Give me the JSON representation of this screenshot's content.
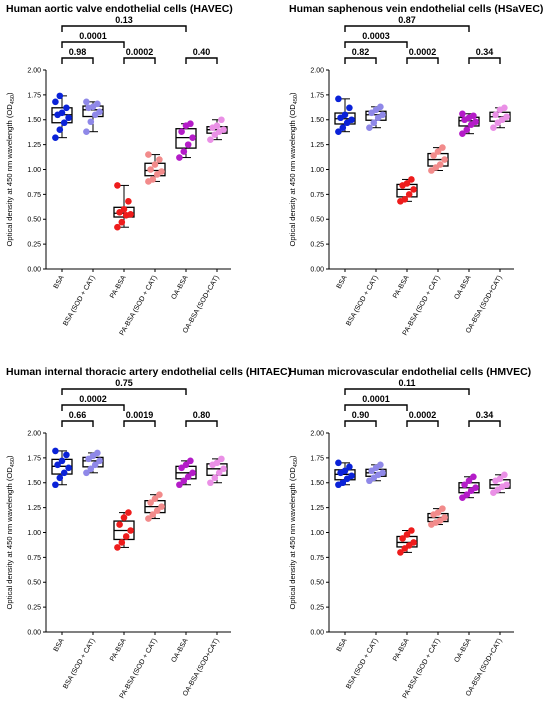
{
  "chart_data": [
    {
      "type": "box",
      "title": "Human aortic valve endothelial cells (HAVEC)",
      "ylabel": "Optical density at 450 nm wavelength (OD",
      "ylabel_sub": "450",
      "ylabel_end": ")",
      "ylim": [
        0,
        2
      ],
      "yticks": [
        "0.00",
        "0.25",
        "0.50",
        "0.75",
        "1.00",
        "1.25",
        "1.50",
        "1.75",
        "2.00"
      ],
      "categories": [
        "BSA",
        "BSA (SOD + CAT)",
        "PA-BSA",
        "PA-BSA (SOD + CAT)",
        "OA-BSA",
        "OA-BSA (SOD+CAT)"
      ],
      "colors": [
        "#0a22d8",
        "#8f88e8",
        "#ee1c1c",
        "#f28b8b",
        "#b41cc8",
        "#ea90e6"
      ],
      "series": [
        {
          "points": [
            1.74,
            1.68,
            1.62,
            1.57,
            1.55,
            1.52,
            1.47,
            1.4,
            1.32
          ]
        },
        {
          "points": [
            1.68,
            1.66,
            1.63,
            1.62,
            1.58,
            1.55,
            1.48,
            1.38
          ]
        },
        {
          "points": [
            0.84,
            0.68,
            0.6,
            0.57,
            0.55,
            0.54,
            0.47,
            0.42
          ]
        },
        {
          "points": [
            1.15,
            1.1,
            1.05,
            1.0,
            0.98,
            0.95,
            0.9,
            0.88
          ]
        },
        {
          "points": [
            1.46,
            1.44,
            1.38,
            1.32,
            1.25,
            1.18,
            1.12
          ]
        },
        {
          "points": [
            1.5,
            1.44,
            1.42,
            1.4,
            1.38,
            1.35,
            1.3
          ]
        }
      ],
      "comparisons": [
        {
          "from": 0,
          "to": 1,
          "label": "0.98",
          "level": 1
        },
        {
          "from": 2,
          "to": 3,
          "label": "0.0002",
          "level": 1
        },
        {
          "from": 4,
          "to": 5,
          "label": "0.40",
          "level": 1
        },
        {
          "from": 0,
          "to": 2,
          "label": "0.0001",
          "level": 2
        },
        {
          "from": 0,
          "to": 4,
          "label": "0.13",
          "level": 3
        }
      ]
    },
    {
      "type": "box",
      "title": "Human saphenous vein endothelial cells (HSaVEC)",
      "ylabel": "Optical density at 450 nm wavelength (OD",
      "ylabel_sub": "450",
      "ylabel_end": ")",
      "ylim": [
        0,
        2
      ],
      "yticks": [
        "0.00",
        "0.25",
        "0.50",
        "0.75",
        "1.00",
        "1.25",
        "1.50",
        "1.75",
        "2.00"
      ],
      "categories": [
        "BSA",
        "BSA (SOD + CAT)",
        "PA-BSA",
        "PA-BSA (SOD + CAT)",
        "OA-BSA",
        "OA-BSA (SOD+CAT)"
      ],
      "colors": [
        "#0a22d8",
        "#8f88e8",
        "#ee1c1c",
        "#f28b8b",
        "#b41cc8",
        "#ea90e6"
      ],
      "series": [
        {
          "points": [
            1.71,
            1.62,
            1.55,
            1.52,
            1.5,
            1.47,
            1.42,
            1.38
          ]
        },
        {
          "points": [
            1.63,
            1.6,
            1.57,
            1.55,
            1.52,
            1.47,
            1.42
          ]
        },
        {
          "points": [
            0.9,
            0.86,
            0.84,
            0.8,
            0.75,
            0.7,
            0.68
          ]
        },
        {
          "points": [
            1.22,
            1.18,
            1.14,
            1.1,
            1.05,
            1.02,
            0.99
          ]
        },
        {
          "points": [
            1.56,
            1.54,
            1.52,
            1.5,
            1.48,
            1.45,
            1.4,
            1.36
          ]
        },
        {
          "points": [
            1.62,
            1.6,
            1.55,
            1.53,
            1.5,
            1.47,
            1.42
          ]
        }
      ],
      "comparisons": [
        {
          "from": 0,
          "to": 1,
          "label": "0.82",
          "level": 1
        },
        {
          "from": 2,
          "to": 3,
          "label": "0.0002",
          "level": 1
        },
        {
          "from": 4,
          "to": 5,
          "label": "0.34",
          "level": 1
        },
        {
          "from": 0,
          "to": 2,
          "label": "0.0003",
          "level": 2
        },
        {
          "from": 0,
          "to": 4,
          "label": "0.87",
          "level": 3
        }
      ]
    },
    {
      "type": "box",
      "title": "Human internal thoracic artery endothelial cells (HITAEC)",
      "ylabel": "Optical density at 450 nm wavelength (OD",
      "ylabel_sub": "450",
      "ylabel_end": ")",
      "ylim": [
        0,
        2
      ],
      "yticks": [
        "0.00",
        "0.25",
        "0.50",
        "0.75",
        "1.00",
        "1.25",
        "1.50",
        "1.75",
        "2.00"
      ],
      "categories": [
        "BSA",
        "BSA (SOD + CAT)",
        "PA-BSA",
        "PA-BSA (SOD + CAT)",
        "OA-BSA",
        "OA-BSA (SOD+CAT)"
      ],
      "colors": [
        "#0a22d8",
        "#8f88e8",
        "#ee1c1c",
        "#f28b8b",
        "#b41cc8",
        "#ea90e6"
      ],
      "series": [
        {
          "points": [
            1.82,
            1.78,
            1.72,
            1.68,
            1.65,
            1.6,
            1.55,
            1.48
          ]
        },
        {
          "points": [
            1.8,
            1.77,
            1.74,
            1.72,
            1.68,
            1.64,
            1.6
          ]
        },
        {
          "points": [
            1.2,
            1.15,
            1.08,
            1.02,
            0.96,
            0.9,
            0.85
          ]
        },
        {
          "points": [
            1.38,
            1.34,
            1.3,
            1.26,
            1.22,
            1.18,
            1.14
          ]
        },
        {
          "points": [
            1.72,
            1.68,
            1.65,
            1.6,
            1.56,
            1.52,
            1.48
          ]
        },
        {
          "points": [
            1.74,
            1.7,
            1.68,
            1.64,
            1.6,
            1.55,
            1.5
          ]
        }
      ],
      "comparisons": [
        {
          "from": 0,
          "to": 1,
          "label": "0.66",
          "level": 1
        },
        {
          "from": 2,
          "to": 3,
          "label": "0.0019",
          "level": 1
        },
        {
          "from": 4,
          "to": 5,
          "label": "0.80",
          "level": 1
        },
        {
          "from": 0,
          "to": 2,
          "label": "0.0002",
          "level": 2
        },
        {
          "from": 0,
          "to": 4,
          "label": "0.75",
          "level": 3
        }
      ]
    },
    {
      "type": "box",
      "title": "Human microvascular endothelial cells (HMVEC)",
      "ylabel": "Optical density at 450 nm wavelength (OD",
      "ylabel_sub": "450",
      "ylabel_end": ")",
      "ylim": [
        0,
        2
      ],
      "yticks": [
        "0.00",
        "0.25",
        "0.50",
        "0.75",
        "1.00",
        "1.25",
        "1.50",
        "1.75",
        "2.00"
      ],
      "categories": [
        "BSA",
        "BSA (SOD + CAT)",
        "PA-BSA",
        "PA-BSA (SOD + CAT)",
        "OA-BSA",
        "OA-BSA (SOD+CAT)"
      ],
      "colors": [
        "#0a22d8",
        "#8f88e8",
        "#ee1c1c",
        "#f28b8b",
        "#b41cc8",
        "#ea90e6"
      ],
      "series": [
        {
          "points": [
            1.7,
            1.66,
            1.62,
            1.6,
            1.57,
            1.54,
            1.5,
            1.48
          ]
        },
        {
          "points": [
            1.68,
            1.65,
            1.62,
            1.6,
            1.58,
            1.55,
            1.52
          ]
        },
        {
          "points": [
            1.02,
            0.98,
            0.94,
            0.9,
            0.87,
            0.84,
            0.8
          ]
        },
        {
          "points": [
            1.24,
            1.2,
            1.18,
            1.15,
            1.12,
            1.1,
            1.08
          ]
        },
        {
          "points": [
            1.56,
            1.52,
            1.48,
            1.45,
            1.42,
            1.38,
            1.35
          ]
        },
        {
          "points": [
            1.58,
            1.54,
            1.52,
            1.48,
            1.46,
            1.43,
            1.4
          ]
        }
      ],
      "comparisons": [
        {
          "from": 0,
          "to": 1,
          "label": "0.90",
          "level": 1
        },
        {
          "from": 2,
          "to": 3,
          "label": "0.0002",
          "level": 1
        },
        {
          "from": 4,
          "to": 5,
          "label": "0.34",
          "level": 1
        },
        {
          "from": 0,
          "to": 2,
          "label": "0.0001",
          "level": 2
        },
        {
          "from": 0,
          "to": 4,
          "label": "0.11",
          "level": 3
        }
      ]
    }
  ]
}
